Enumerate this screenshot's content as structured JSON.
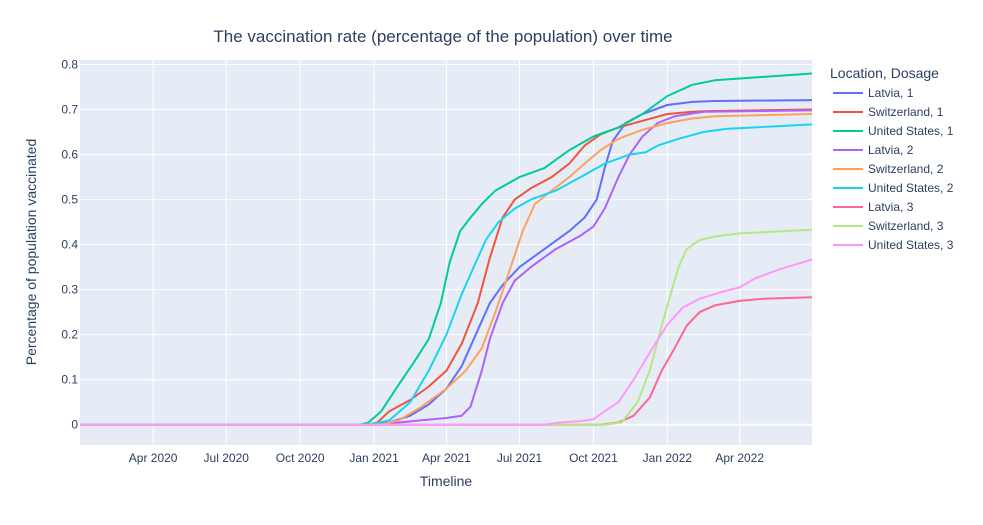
{
  "chart_data": {
    "type": "line",
    "title": "The vaccination rate (percentage of the population) over time",
    "xlabel": "Timeline",
    "ylabel": "Percentage of population vaccinated",
    "legend_title": "Location, Dosage",
    "legend_position": "right",
    "grid": true,
    "x_range": [
      "2020-01-01",
      "2022-06-30"
    ],
    "y_range": [
      -0.045,
      0.81
    ],
    "x_ticks": [
      {
        "date": "2020-04-01",
        "label": "Apr 2020"
      },
      {
        "date": "2020-07-01",
        "label": "Jul 2020"
      },
      {
        "date": "2020-10-01",
        "label": "Oct 2020"
      },
      {
        "date": "2021-01-01",
        "label": "Jan 2021"
      },
      {
        "date": "2021-04-01",
        "label": "Apr 2021"
      },
      {
        "date": "2021-07-01",
        "label": "Jul 2021"
      },
      {
        "date": "2021-10-01",
        "label": "Oct 2021"
      },
      {
        "date": "2022-01-01",
        "label": "Jan 2022"
      },
      {
        "date": "2022-04-01",
        "label": "Apr 2022"
      }
    ],
    "y_ticks": [
      {
        "value": 0,
        "label": "0"
      },
      {
        "value": 0.1,
        "label": "0.1"
      },
      {
        "value": 0.2,
        "label": "0.2"
      },
      {
        "value": 0.3,
        "label": "0.3"
      },
      {
        "value": 0.4,
        "label": "0.4"
      },
      {
        "value": 0.5,
        "label": "0.5"
      },
      {
        "value": 0.6,
        "label": "0.6"
      },
      {
        "value": 0.7,
        "label": "0.7"
      },
      {
        "value": 0.8,
        "label": "0.8"
      }
    ],
    "series": [
      {
        "name": "Latvia, 1",
        "color": "#636efa",
        "points": [
          [
            "2020-01-01",
            0
          ],
          [
            "2021-01-01",
            0
          ],
          [
            "2021-01-20",
            0.005
          ],
          [
            "2021-02-15",
            0.02
          ],
          [
            "2021-03-10",
            0.045
          ],
          [
            "2021-04-01",
            0.08
          ],
          [
            "2021-04-20",
            0.13
          ],
          [
            "2021-05-10",
            0.21
          ],
          [
            "2021-05-25",
            0.27
          ],
          [
            "2021-06-10",
            0.31
          ],
          [
            "2021-07-01",
            0.35
          ],
          [
            "2021-08-01",
            0.39
          ],
          [
            "2021-09-01",
            0.43
          ],
          [
            "2021-09-20",
            0.46
          ],
          [
            "2021-10-05",
            0.5
          ],
          [
            "2021-10-15",
            0.57
          ],
          [
            "2021-10-25",
            0.63
          ],
          [
            "2021-11-10",
            0.67
          ],
          [
            "2021-12-01",
            0.69
          ],
          [
            "2022-01-01",
            0.71
          ],
          [
            "2022-02-01",
            0.717
          ],
          [
            "2022-03-01",
            0.719
          ],
          [
            "2022-06-30",
            0.721
          ]
        ]
      },
      {
        "name": "Switzerland, 1",
        "color": "#ef553b",
        "points": [
          [
            "2020-01-01",
            0
          ],
          [
            "2020-12-25",
            0
          ],
          [
            "2021-01-05",
            0.005
          ],
          [
            "2021-01-20",
            0.03
          ],
          [
            "2021-02-15",
            0.055
          ],
          [
            "2021-03-10",
            0.085
          ],
          [
            "2021-04-01",
            0.12
          ],
          [
            "2021-04-20",
            0.18
          ],
          [
            "2021-05-10",
            0.27
          ],
          [
            "2021-05-25",
            0.37
          ],
          [
            "2021-06-10",
            0.46
          ],
          [
            "2021-06-25",
            0.5
          ],
          [
            "2021-07-15",
            0.525
          ],
          [
            "2021-08-10",
            0.55
          ],
          [
            "2021-09-01",
            0.58
          ],
          [
            "2021-09-20",
            0.62
          ],
          [
            "2021-10-10",
            0.645
          ],
          [
            "2021-11-01",
            0.66
          ],
          [
            "2021-12-01",
            0.675
          ],
          [
            "2022-01-01",
            0.69
          ],
          [
            "2022-02-01",
            0.695
          ],
          [
            "2022-03-01",
            0.697
          ],
          [
            "2022-06-30",
            0.7
          ]
        ]
      },
      {
        "name": "United States, 1",
        "color": "#00cc96",
        "points": [
          [
            "2020-01-01",
            0
          ],
          [
            "2020-12-14",
            0
          ],
          [
            "2020-12-25",
            0.005
          ],
          [
            "2021-01-10",
            0.03
          ],
          [
            "2021-02-01",
            0.09
          ],
          [
            "2021-02-20",
            0.14
          ],
          [
            "2021-03-10",
            0.19
          ],
          [
            "2021-03-25",
            0.27
          ],
          [
            "2021-04-05",
            0.36
          ],
          [
            "2021-04-18",
            0.43
          ],
          [
            "2021-05-01",
            0.46
          ],
          [
            "2021-05-15",
            0.49
          ],
          [
            "2021-06-01",
            0.52
          ],
          [
            "2021-07-01",
            0.55
          ],
          [
            "2021-08-01",
            0.57
          ],
          [
            "2021-09-01",
            0.61
          ],
          [
            "2021-10-01",
            0.64
          ],
          [
            "2021-11-01",
            0.66
          ],
          [
            "2021-12-01",
            0.69
          ],
          [
            "2022-01-01",
            0.73
          ],
          [
            "2022-02-01",
            0.755
          ],
          [
            "2022-03-01",
            0.765
          ],
          [
            "2022-06-30",
            0.78
          ]
        ]
      },
      {
        "name": "Latvia, 2",
        "color": "#ab63fa",
        "points": [
          [
            "2020-01-01",
            0
          ],
          [
            "2021-01-01",
            0
          ],
          [
            "2021-02-01",
            0.005
          ],
          [
            "2021-03-01",
            0.01
          ],
          [
            "2021-04-01",
            0.015
          ],
          [
            "2021-04-20",
            0.02
          ],
          [
            "2021-05-01",
            0.04
          ],
          [
            "2021-05-15",
            0.12
          ],
          [
            "2021-05-25",
            0.19
          ],
          [
            "2021-06-10",
            0.27
          ],
          [
            "2021-06-25",
            0.32
          ],
          [
            "2021-07-15",
            0.35
          ],
          [
            "2021-08-15",
            0.39
          ],
          [
            "2021-09-15",
            0.42
          ],
          [
            "2021-10-01",
            0.44
          ],
          [
            "2021-10-15",
            0.48
          ],
          [
            "2021-11-01",
            0.55
          ],
          [
            "2021-11-15",
            0.6
          ],
          [
            "2021-12-01",
            0.64
          ],
          [
            "2021-12-20",
            0.67
          ],
          [
            "2022-01-10",
            0.685
          ],
          [
            "2022-02-15",
            0.695
          ],
          [
            "2022-06-30",
            0.698
          ]
        ]
      },
      {
        "name": "Switzerland, 2",
        "color": "#ffa15a",
        "points": [
          [
            "2020-01-01",
            0
          ],
          [
            "2021-01-10",
            0
          ],
          [
            "2021-02-01",
            0.01
          ],
          [
            "2021-03-01",
            0.04
          ],
          [
            "2021-04-01",
            0.08
          ],
          [
            "2021-04-25",
            0.12
          ],
          [
            "2021-05-15",
            0.17
          ],
          [
            "2021-06-01",
            0.25
          ],
          [
            "2021-06-20",
            0.35
          ],
          [
            "2021-07-05",
            0.43
          ],
          [
            "2021-07-20",
            0.49
          ],
          [
            "2021-08-10",
            0.52
          ],
          [
            "2021-09-01",
            0.55
          ],
          [
            "2021-09-20",
            0.58
          ],
          [
            "2021-10-10",
            0.61
          ],
          [
            "2021-11-01",
            0.635
          ],
          [
            "2021-12-01",
            0.655
          ],
          [
            "2022-01-01",
            0.67
          ],
          [
            "2022-02-01",
            0.68
          ],
          [
            "2022-03-01",
            0.685
          ],
          [
            "2022-06-30",
            0.69
          ]
        ]
      },
      {
        "name": "United States, 2",
        "color": "#19d3f3",
        "points": [
          [
            "2020-01-01",
            0
          ],
          [
            "2020-12-20",
            0
          ],
          [
            "2021-01-01",
            0.002
          ],
          [
            "2021-01-20",
            0.01
          ],
          [
            "2021-02-15",
            0.05
          ],
          [
            "2021-03-10",
            0.12
          ],
          [
            "2021-04-01",
            0.2
          ],
          [
            "2021-04-20",
            0.29
          ],
          [
            "2021-05-05",
            0.35
          ],
          [
            "2021-05-20",
            0.41
          ],
          [
            "2021-06-05",
            0.45
          ],
          [
            "2021-06-25",
            0.48
          ],
          [
            "2021-07-15",
            0.5
          ],
          [
            "2021-08-15",
            0.52
          ],
          [
            "2021-09-15",
            0.55
          ],
          [
            "2021-10-15",
            0.58
          ],
          [
            "2021-11-15",
            0.6
          ],
          [
            "2021-12-05",
            0.605
          ],
          [
            "2021-12-20",
            0.62
          ],
          [
            "2022-01-15",
            0.635
          ],
          [
            "2022-02-15",
            0.65
          ],
          [
            "2022-03-15",
            0.657
          ],
          [
            "2022-06-30",
            0.667
          ]
        ]
      },
      {
        "name": "Latvia, 3",
        "color": "#ff6692",
        "points": [
          [
            "2020-01-01",
            0
          ],
          [
            "2021-10-10",
            0
          ],
          [
            "2021-11-01",
            0.005
          ],
          [
            "2021-11-20",
            0.02
          ],
          [
            "2021-12-10",
            0.06
          ],
          [
            "2021-12-25",
            0.12
          ],
          [
            "2022-01-10",
            0.17
          ],
          [
            "2022-01-25",
            0.22
          ],
          [
            "2022-02-10",
            0.25
          ],
          [
            "2022-03-01",
            0.265
          ],
          [
            "2022-04-01",
            0.275
          ],
          [
            "2022-05-01",
            0.28
          ],
          [
            "2022-06-30",
            0.283
          ]
        ]
      },
      {
        "name": "Switzerland, 3",
        "color": "#b6e880",
        "points": [
          [
            "2020-01-01",
            0
          ],
          [
            "2021-08-10",
            0
          ],
          [
            "2021-09-01",
            0.0
          ],
          [
            "2021-10-15",
            0.0
          ],
          [
            "2021-11-05",
            0.005
          ],
          [
            "2021-11-25",
            0.05
          ],
          [
            "2021-12-10",
            0.12
          ],
          [
            "2021-12-25",
            0.22
          ],
          [
            "2022-01-05",
            0.29
          ],
          [
            "2022-01-15",
            0.35
          ],
          [
            "2022-01-25",
            0.39
          ],
          [
            "2022-02-10",
            0.41
          ],
          [
            "2022-03-01",
            0.418
          ],
          [
            "2022-04-01",
            0.425
          ],
          [
            "2022-06-30",
            0.433
          ]
        ]
      },
      {
        "name": "United States, 3",
        "color": "#ff97ff",
        "points": [
          [
            "2020-01-01",
            0
          ],
          [
            "2021-08-01",
            0
          ],
          [
            "2021-08-20",
            0.005
          ],
          [
            "2021-09-15",
            0.008
          ],
          [
            "2021-10-01",
            0.012
          ],
          [
            "2021-10-15",
            0.03
          ],
          [
            "2021-11-01",
            0.05
          ],
          [
            "2021-11-20",
            0.1
          ],
          [
            "2021-12-10",
            0.16
          ],
          [
            "2021-12-31",
            0.22
          ],
          [
            "2022-01-20",
            0.26
          ],
          [
            "2022-02-10",
            0.28
          ],
          [
            "2022-03-10",
            0.295
          ],
          [
            "2022-04-01",
            0.305
          ],
          [
            "2022-04-20",
            0.325
          ],
          [
            "2022-05-20",
            0.345
          ],
          [
            "2022-06-30",
            0.367
          ]
        ]
      }
    ]
  }
}
